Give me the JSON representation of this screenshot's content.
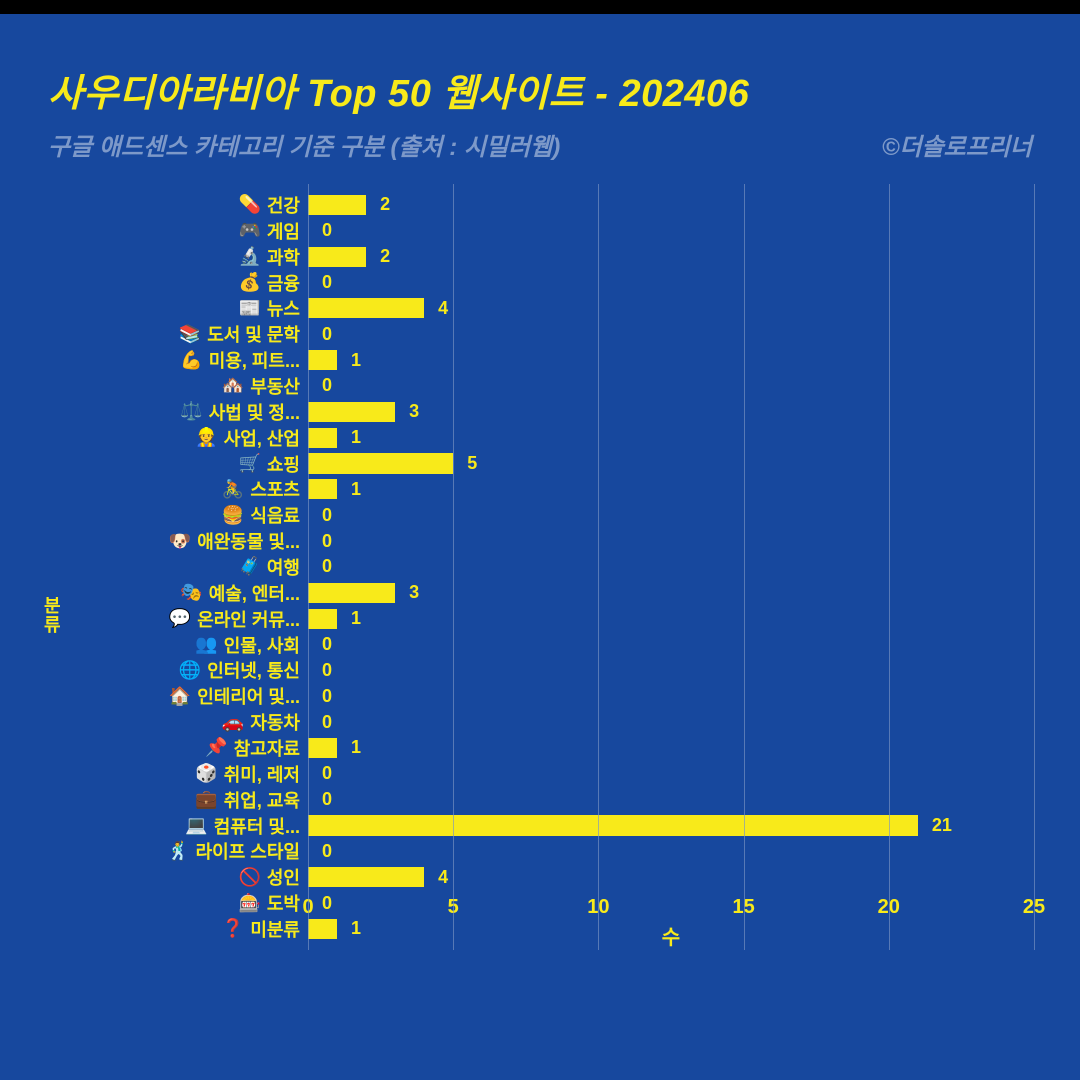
{
  "title": "사우디아라비아 Top 50 웹사이트 - 202406",
  "subtitle": "구글 애드센스 카테고리 기준 구분 (출처 : 시밀러웹)",
  "credit": "©더솔로프리너",
  "xlabel": "수",
  "ylabel_lines": [
    "분",
    "류"
  ],
  "chart": {
    "type": "bar",
    "xlim": [
      0,
      25
    ],
    "xticks": [
      0,
      5,
      10,
      15,
      20,
      25
    ],
    "bar_color": "#f8ea1a",
    "grid_color": "#7a94c3",
    "background_color": "#17489e",
    "text_color": "#f8ea1a",
    "subtitle_color": "#7d99c9",
    "label_fontsize": 18,
    "title_fontsize": 38
  },
  "categories": [
    {
      "icon": "💊",
      "label": "건강",
      "value": 2
    },
    {
      "icon": "🎮",
      "label": "게임",
      "value": 0
    },
    {
      "icon": "🔬",
      "label": "과학",
      "value": 2
    },
    {
      "icon": "💰",
      "label": "금융",
      "value": 0
    },
    {
      "icon": "📰",
      "label": "뉴스",
      "value": 4
    },
    {
      "icon": "📚",
      "label": "도서 및 문학",
      "value": 0
    },
    {
      "icon": "💪",
      "label": "미용, 피트...",
      "value": 1
    },
    {
      "icon": "🏘️",
      "label": "부동산",
      "value": 0
    },
    {
      "icon": "⚖️",
      "label": "사법 및 정...",
      "value": 3
    },
    {
      "icon": "👷",
      "label": "사업, 산업",
      "value": 1
    },
    {
      "icon": "🛒",
      "label": "쇼핑",
      "value": 5
    },
    {
      "icon": "🚴",
      "label": "스포츠",
      "value": 1
    },
    {
      "icon": "🍔",
      "label": "식음료",
      "value": 0
    },
    {
      "icon": "🐶",
      "label": "애완동물 및...",
      "value": 0
    },
    {
      "icon": "🧳",
      "label": "여행",
      "value": 0
    },
    {
      "icon": "🎭",
      "label": "예술, 엔터...",
      "value": 3
    },
    {
      "icon": "💬",
      "label": "온라인 커뮤...",
      "value": 1
    },
    {
      "icon": "👥",
      "label": "인물, 사회",
      "value": 0
    },
    {
      "icon": "🌐",
      "label": "인터넷, 통신",
      "value": 0
    },
    {
      "icon": "🏠",
      "label": "인테리어 및...",
      "value": 0
    },
    {
      "icon": "🚗",
      "label": "자동차",
      "value": 0
    },
    {
      "icon": "📌",
      "label": "참고자료",
      "value": 1
    },
    {
      "icon": "🎲",
      "label": "취미, 레저",
      "value": 0
    },
    {
      "icon": "💼",
      "label": "취업, 교육",
      "value": 0
    },
    {
      "icon": "💻",
      "label": "컴퓨터 및...",
      "value": 21
    },
    {
      "icon": "🕺",
      "label": "라이프 스타일",
      "value": 0
    },
    {
      "icon": "🚫",
      "label": "성인",
      "value": 4
    },
    {
      "icon": "🎰",
      "label": "도박",
      "value": 0
    },
    {
      "icon": "❓",
      "label": "미분류",
      "value": 1
    }
  ]
}
